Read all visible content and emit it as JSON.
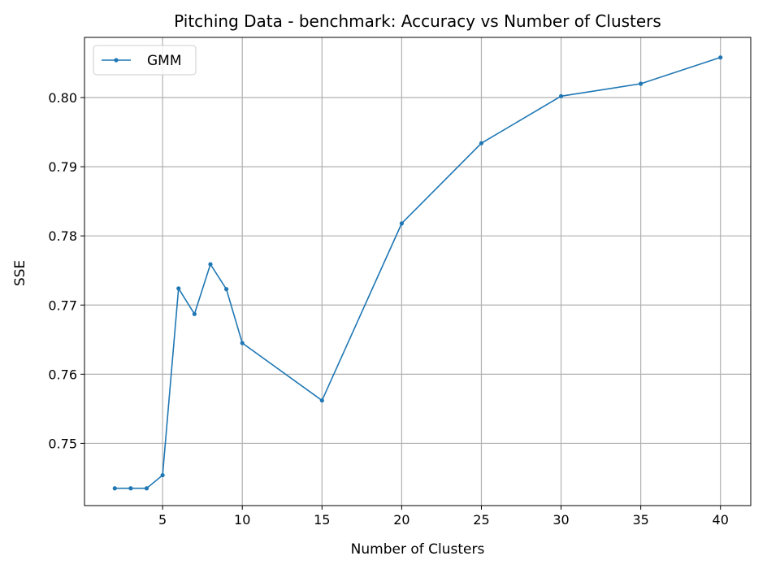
{
  "chart_data": {
    "type": "line",
    "title": "Pitching Data - benchmark: Accuracy vs Number of Clusters",
    "xlabel": "Number of Clusters",
    "ylabel": "SSE",
    "xlim": [
      0.1,
      41.9
    ],
    "ylim": [
      0.741,
      0.8087
    ],
    "xticks": [
      5,
      10,
      15,
      20,
      25,
      30,
      35,
      40
    ],
    "yticks": [
      0.75,
      0.76,
      0.77,
      0.78,
      0.79,
      0.8
    ],
    "ytick_labels": [
      "0.75",
      "0.76",
      "0.77",
      "0.78",
      "0.79",
      "0.80"
    ],
    "grid": true,
    "legend_position": "top-left",
    "series": [
      {
        "name": "GMM",
        "color": "#1f77b4",
        "marker": "circle",
        "x": [
          2,
          3,
          4,
          5,
          6,
          7,
          8,
          9,
          10,
          15,
          20,
          25,
          30,
          35,
          40
        ],
        "y": [
          0.7435,
          0.7435,
          0.7435,
          0.7454,
          0.7724,
          0.7687,
          0.7759,
          0.7723,
          0.7645,
          0.7562,
          0.7818,
          0.7934,
          0.8002,
          0.802,
          0.8058
        ]
      }
    ]
  }
}
